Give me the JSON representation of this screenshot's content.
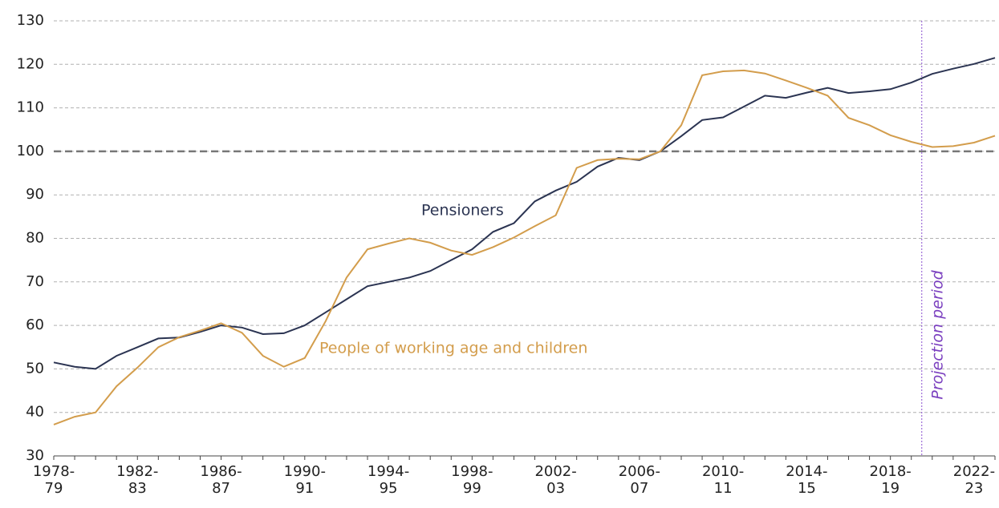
{
  "chart_data": {
    "type": "line",
    "categories": [
      "1978-79",
      null,
      null,
      null,
      "1982-83",
      null,
      null,
      null,
      "1986-87",
      null,
      null,
      null,
      "1990-91",
      null,
      null,
      null,
      "1994-95",
      null,
      null,
      null,
      "1998-99",
      null,
      null,
      null,
      "2002-03",
      null,
      null,
      null,
      "2006-07",
      null,
      null,
      null,
      "2010-11",
      null,
      null,
      null,
      "2014-15",
      null,
      null,
      null,
      "2018-19",
      null,
      null,
      null,
      "2022-23",
      null
    ],
    "series": [
      {
        "name": "Pensioners",
        "color": "#2b3452",
        "values": [
          51.5,
          50.5,
          50,
          53,
          55,
          57,
          57.2,
          58.5,
          60,
          59.5,
          58,
          58.2,
          60,
          63,
          66,
          69,
          70,
          71,
          72.5,
          75,
          77.5,
          81.5,
          83.5,
          88.5,
          91,
          93,
          96.5,
          98.5,
          98,
          100,
          103.5,
          107.2,
          107.8,
          110.3,
          112.8,
          112.3,
          113.5,
          114.6,
          113.4,
          113.8,
          114.3,
          115.8,
          117.8,
          119,
          120.1,
          121.5
        ]
      },
      {
        "name": "People of working age and children",
        "color": "#d39d4c",
        "values": [
          37.2,
          39,
          40,
          46,
          50.3,
          55,
          57.3,
          58.8,
          60.5,
          58.3,
          53,
          50.5,
          52.5,
          61,
          71,
          77.5,
          78.8,
          80,
          79,
          77.2,
          76.2,
          78,
          80.2,
          82.8,
          85.3,
          96.2,
          98,
          98.3,
          98.2,
          100,
          106,
          117.5,
          118.4,
          118.6,
          117.9,
          116.3,
          114.6,
          112.8,
          107.7,
          106,
          103.7,
          102.2,
          101,
          101.2,
          102,
          103.6
        ]
      }
    ],
    "ylim": [
      30,
      130
    ],
    "yticks": [
      30,
      40,
      50,
      60,
      70,
      80,
      90,
      100,
      110,
      120,
      130
    ],
    "grid": true,
    "reference_line": 100,
    "annotation": "Projection period"
  }
}
